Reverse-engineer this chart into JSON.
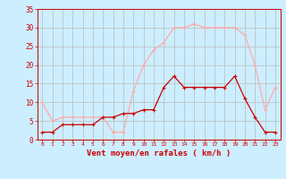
{
  "x": [
    0,
    1,
    2,
    3,
    4,
    5,
    6,
    7,
    8,
    9,
    10,
    11,
    12,
    13,
    14,
    15,
    16,
    17,
    18,
    19,
    20,
    21,
    22,
    23
  ],
  "wind_avg": [
    2,
    2,
    4,
    4,
    4,
    4,
    6,
    6,
    7,
    7,
    8,
    8,
    14,
    17,
    14,
    14,
    14,
    14,
    14,
    17,
    11,
    6,
    2,
    2
  ],
  "wind_gust": [
    10,
    5,
    6,
    6,
    6,
    6,
    6,
    2,
    2,
    13,
    20,
    24,
    26,
    30,
    30,
    31,
    30,
    30,
    30,
    30,
    28,
    20,
    8,
    14
  ],
  "avg_color": "#cc0000",
  "gust_color": "#ffaaaa",
  "bg_color": "#cceeff",
  "grid_color": "#bbbbbb",
  "xlabel": "Vent moyen/en rafales ( km/h )",
  "ylim": [
    0,
    35
  ],
  "xlim": [
    -0.5,
    23.5
  ],
  "xlabel_color": "#cc0000",
  "tick_color": "#cc0000",
  "yticks": [
    0,
    5,
    10,
    15,
    20,
    25,
    30,
    35
  ]
}
